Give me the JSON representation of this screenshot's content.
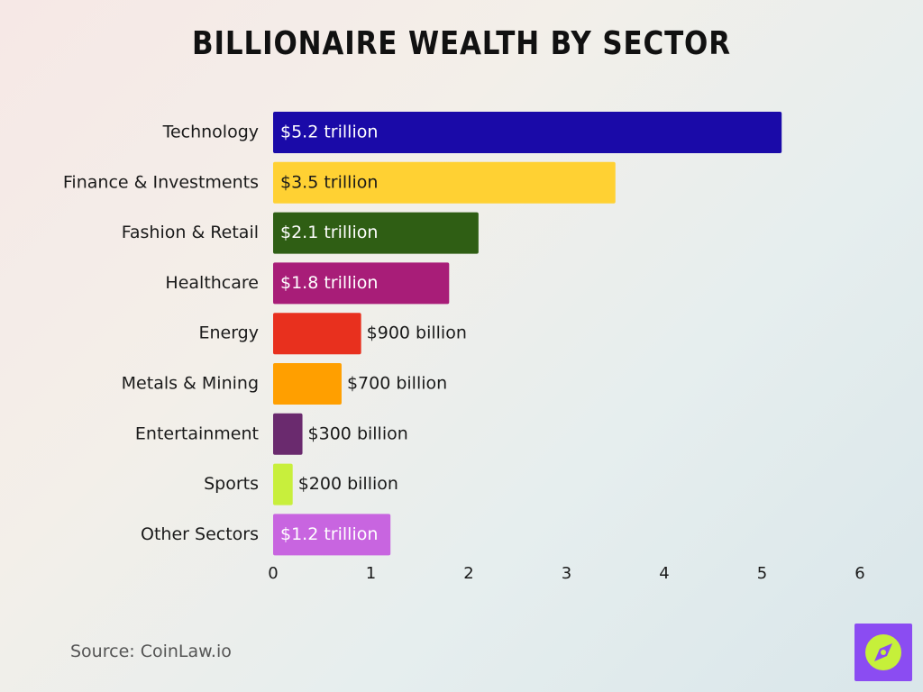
{
  "chart_data": {
    "type": "bar",
    "orientation": "horizontal",
    "title": "Billionaire Wealth by Sector",
    "xlabel": "",
    "ylabel": "",
    "xlim": [
      0,
      6
    ],
    "xticks": [
      "0",
      "1",
      "2",
      "3",
      "4",
      "5",
      "6"
    ],
    "grid": false,
    "categories": [
      "Technology",
      "Finance & Investments",
      "Fashion & Retail",
      "Healthcare",
      "Energy",
      "Metals & Mining",
      "Entertainment",
      "Sports",
      "Other Sectors"
    ],
    "values": [
      5.2,
      3.5,
      2.1,
      1.8,
      0.9,
      0.7,
      0.3,
      0.2,
      1.2
    ],
    "labels": [
      "$5.2 trillion",
      "$3.5 trillion",
      "$2.1 trillion",
      "$1.8 trillion",
      "$900 billion",
      "$700 billion",
      "$300 billion",
      "$200 billion",
      "$1.2 trillion"
    ],
    "colors": [
      "#1a0aa8",
      "#ffd133",
      "#2f5e14",
      "#a81d78",
      "#e8301e",
      "#ff9f00",
      "#6a2a6e",
      "#c8ef3c",
      "#c865e0"
    ]
  },
  "source": "Source: CoinLaw.io",
  "logo_icon": "compass-icon"
}
